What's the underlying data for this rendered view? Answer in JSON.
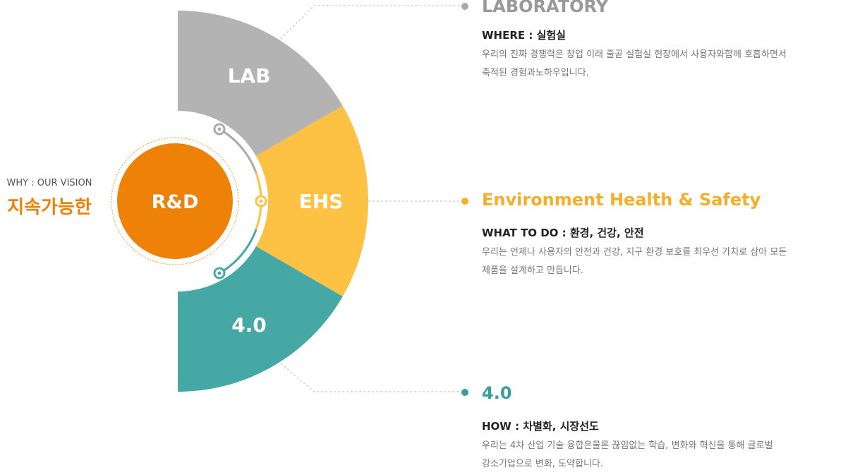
{
  "vision": {
    "label": "WHY : OUR VISION",
    "title": "지속가능한"
  },
  "center": "R&D",
  "segments": [
    {
      "label": "LAB"
    },
    {
      "label": "EHS"
    },
    {
      "label": "4.0"
    }
  ],
  "details": [
    {
      "title": "LABORATORY",
      "heading": "WHERE : 실험실",
      "lines": [
        "우리의 진짜 경쟁력은 창업 이래 줄곧 실험실 현장에서 사용자와함께 호흡하면서",
        "축적된 경험과노하우입니다."
      ]
    },
    {
      "title": "Environment Health & Safety",
      "heading": "WHAT TO DO : 환경, 건강, 안전",
      "lines": [
        "우리는 언제나 사용자의 안전과 건강, 지구 환경 보호를 최우선 가치로 삼아 모든",
        "제품을 설계하고 만듭니다."
      ]
    },
    {
      "title": "4.0",
      "heading": "HOW : 차별화, 시장선도",
      "lines": [
        "우리는 4차 산업 기술 융합은물론 끊임없는 학습, 변화와 혁신을 통해 글로벌",
        "강소기업으로 변화, 도약합니다."
      ]
    }
  ]
}
